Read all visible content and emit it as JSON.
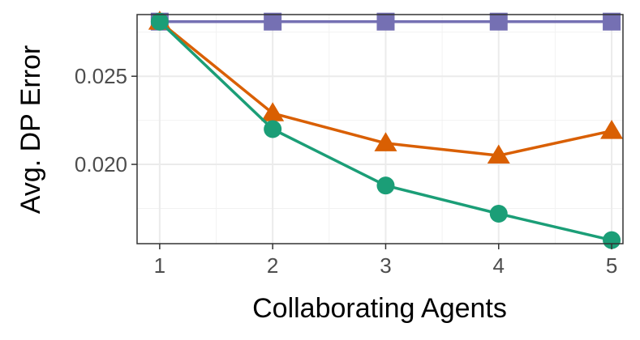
{
  "chart_data": {
    "type": "line",
    "title": "",
    "xlabel": "Collaborating Agents",
    "ylabel": "Avg. DP Error",
    "x": [
      1,
      2,
      3,
      4,
      5
    ],
    "x_tick_labels": [
      "1",
      "2",
      "3",
      "4",
      "5"
    ],
    "y_ticks": [
      0.02,
      0.025
    ],
    "y_tick_labels": [
      "0.020",
      "0.025"
    ],
    "xlim": [
      0.8,
      5.1
    ],
    "ylim": [
      0.0155,
      0.0285
    ],
    "grid": true,
    "legend": "none",
    "series": [
      {
        "marker": "square",
        "color": "#7570b3",
        "values": [
          0.0281,
          0.0281,
          0.0281,
          0.0281,
          0.0281
        ]
      },
      {
        "marker": "triangle",
        "color": "#d95f02",
        "values": [
          0.0281,
          0.0229,
          0.0212,
          0.0205,
          0.0219
        ]
      },
      {
        "marker": "circle",
        "color": "#1b9e77",
        "values": [
          0.0281,
          0.022,
          0.0188,
          0.0172,
          0.0157
        ]
      }
    ]
  }
}
